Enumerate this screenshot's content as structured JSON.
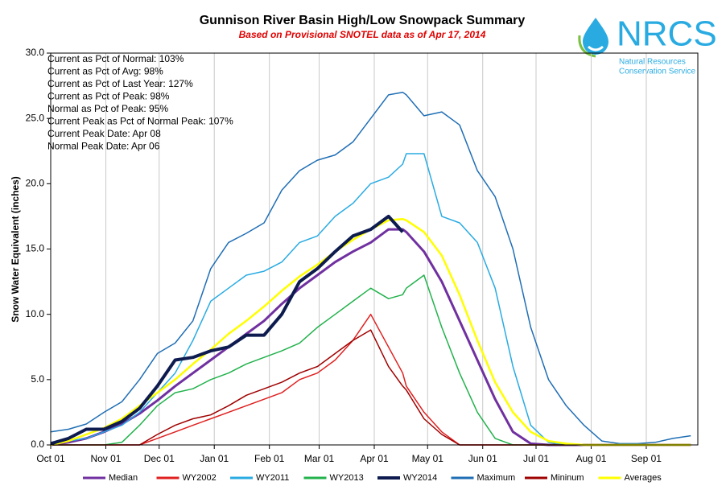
{
  "chart_data": {
    "type": "line",
    "title": "Gunnison River Basin High/Low Snowpack Summary",
    "subtitle": "Based on Provisional SNOTEL data as of Apr 17, 2014",
    "y_label": "Snow Water Equivalent (inches)",
    "annotations": [
      "Current  as Pct of Normal: 103%",
      "Current  as Pct of Avg: 98%",
      "Current  as Pct of Last Year: 127%",
      "Current  as Pct of Peak: 98%",
      "Normal  as Pct of Peak: 95%",
      "Current  Peak as Pct of Normal  Peak: 107%",
      "Current  Peak Date: Apr 08",
      "Normal  Peak Date: Apr 06"
    ],
    "x": [
      0,
      10,
      20,
      30,
      40,
      50,
      60,
      70,
      80,
      90,
      100,
      110,
      120,
      130,
      140,
      150,
      160,
      170,
      180,
      190,
      198,
      200,
      210,
      220,
      230,
      240,
      250,
      260,
      270,
      280,
      290,
      300,
      310,
      320,
      330,
      340,
      350,
      360
    ],
    "xlim": [
      0,
      364
    ],
    "xticks": [
      {
        "value": 0,
        "label": "Oct 01"
      },
      {
        "value": 31,
        "label": "Nov 01"
      },
      {
        "value": 61,
        "label": "Dec 01"
      },
      {
        "value": 92,
        "label": "Jan 01"
      },
      {
        "value": 123,
        "label": "Feb 01"
      },
      {
        "value": 151,
        "label": "Mar 01"
      },
      {
        "value": 182,
        "label": "Apr 01"
      },
      {
        "value": 212,
        "label": "May 01"
      },
      {
        "value": 243,
        "label": "Jun 01"
      },
      {
        "value": 273,
        "label": "Jul 01"
      },
      {
        "value": 304,
        "label": "Aug 01"
      },
      {
        "value": 335,
        "label": "Sep 01"
      }
    ],
    "ylim": [
      0,
      30
    ],
    "yticks": [
      {
        "value": 0,
        "label": "0.0"
      },
      {
        "value": 5,
        "label": "5.0"
      },
      {
        "value": 10,
        "label": "10.0"
      },
      {
        "value": 15,
        "label": "15.0"
      },
      {
        "value": 20,
        "label": "20.0"
      },
      {
        "value": 25,
        "label": "25.0"
      },
      {
        "value": 30,
        "label": "30.0"
      }
    ],
    "grid": "x",
    "legend": "bottom",
    "series": [
      {
        "name": "Median",
        "color": "#7030a0",
        "line_width": 3,
        "values": [
          0,
          0.2,
          0.5,
          1.0,
          1.6,
          2.4,
          3.4,
          4.5,
          5.5,
          6.5,
          7.5,
          8.5,
          9.5,
          10.8,
          12.0,
          13.0,
          14.0,
          14.8,
          15.5,
          16.5,
          16.5,
          16.3,
          14.8,
          12.5,
          9.5,
          6.5,
          3.5,
          1.0,
          0.1,
          0,
          0,
          0,
          0,
          0,
          0,
          0,
          0,
          0
        ]
      },
      {
        "name": "WY2002",
        "color": "#e02020",
        "line_width": 1.5,
        "values": [
          0,
          0,
          0,
          0,
          0,
          0,
          0.5,
          1.0,
          1.5,
          2.0,
          2.5,
          3.0,
          3.5,
          4.0,
          5.0,
          5.5,
          6.5,
          8.0,
          10.0,
          7.5,
          5.5,
          4.5,
          2.5,
          1.0,
          0,
          0,
          0,
          0,
          0,
          0,
          0,
          0,
          0,
          0,
          0,
          0,
          0,
          0
        ]
      },
      {
        "name": "WY2011",
        "color": "#29abe2",
        "line_width": 1.5,
        "values": [
          0.2,
          0.3,
          0.5,
          1.0,
          1.5,
          2.5,
          4.0,
          5.5,
          8.0,
          11.0,
          12.0,
          13.0,
          13.3,
          14.0,
          15.5,
          16.0,
          17.5,
          18.5,
          20.0,
          20.5,
          21.5,
          22.3,
          22.3,
          17.5,
          17.0,
          15.5,
          12.0,
          6.0,
          1.5,
          0.2,
          0,
          0,
          0,
          0,
          0,
          0,
          0,
          0
        ]
      },
      {
        "name": "WY2013",
        "color": "#22b24c",
        "line_width": 1.5,
        "values": [
          0,
          0,
          0,
          0,
          0.2,
          1.5,
          3.0,
          4.0,
          4.3,
          5.0,
          5.5,
          6.2,
          6.7,
          7.2,
          7.8,
          9.0,
          10.0,
          11.0,
          12.0,
          11.2,
          11.5,
          12.0,
          13.0,
          9.0,
          5.5,
          2.5,
          0.5,
          0,
          0,
          0,
          0,
          0,
          0,
          0,
          0,
          0,
          0,
          0
        ]
      },
      {
        "name": "Maximum",
        "color": "#1f6eb5",
        "line_width": 1.5,
        "values": [
          1.0,
          1.2,
          1.6,
          2.5,
          3.3,
          5.0,
          7.0,
          7.8,
          9.5,
          13.5,
          15.5,
          16.2,
          17.0,
          19.5,
          21.0,
          21.8,
          22.2,
          23.2,
          25.0,
          26.8,
          27.0,
          26.8,
          25.2,
          25.5,
          24.5,
          21.0,
          19.0,
          15.0,
          9.0,
          5.0,
          3.0,
          1.5,
          0.3,
          0.1,
          0.1,
          0.2,
          0.5,
          0.7
        ]
      },
      {
        "name": "Mininum",
        "color": "#a00000",
        "line_width": 1.5,
        "values": [
          0,
          0,
          0,
          0,
          0,
          0,
          0.8,
          1.5,
          2.0,
          2.3,
          3.0,
          3.8,
          4.3,
          4.8,
          5.5,
          6.0,
          7.0,
          8.0,
          8.8,
          6.0,
          4.5,
          4.2,
          2.0,
          0.8,
          0,
          0,
          0,
          0,
          0,
          0,
          0,
          0,
          0,
          0,
          0,
          0,
          0,
          0
        ]
      },
      {
        "name": "Averages",
        "color": "#ffff00",
        "line_width": 2.5,
        "values": [
          0,
          0.3,
          0.8,
          1.3,
          2.0,
          3.0,
          4.0,
          5.0,
          6.2,
          7.3,
          8.5,
          9.5,
          10.6,
          11.8,
          12.9,
          13.8,
          14.8,
          15.7,
          16.5,
          17.2,
          17.3,
          17.2,
          16.3,
          14.5,
          11.5,
          8.0,
          4.8,
          2.5,
          1.0,
          0.3,
          0.1,
          0,
          0,
          0,
          0,
          0,
          0,
          0
        ]
      },
      {
        "name": "WY2014",
        "color": "#0d1b4f",
        "line_width": 4,
        "values": [
          0.1,
          0.5,
          1.2,
          1.2,
          1.8,
          2.8,
          4.5,
          6.5,
          6.7,
          7.2,
          7.5,
          8.4,
          8.4,
          10.0,
          12.5,
          13.5,
          14.8,
          16.0,
          16.5,
          17.5,
          16.3,
          null,
          null,
          null,
          null,
          null,
          null,
          null,
          null,
          null,
          null,
          null,
          null,
          null,
          null,
          null,
          null,
          null
        ]
      }
    ],
    "legend_order": [
      "Median",
      "WY2002",
      "WY2011",
      "WY2013",
      "WY2014",
      "Maximum",
      "Mininum",
      "Averages"
    ]
  },
  "logo": {
    "name": "NRCS",
    "line1": "Natural Resources",
    "line2": "Conservation Service"
  }
}
